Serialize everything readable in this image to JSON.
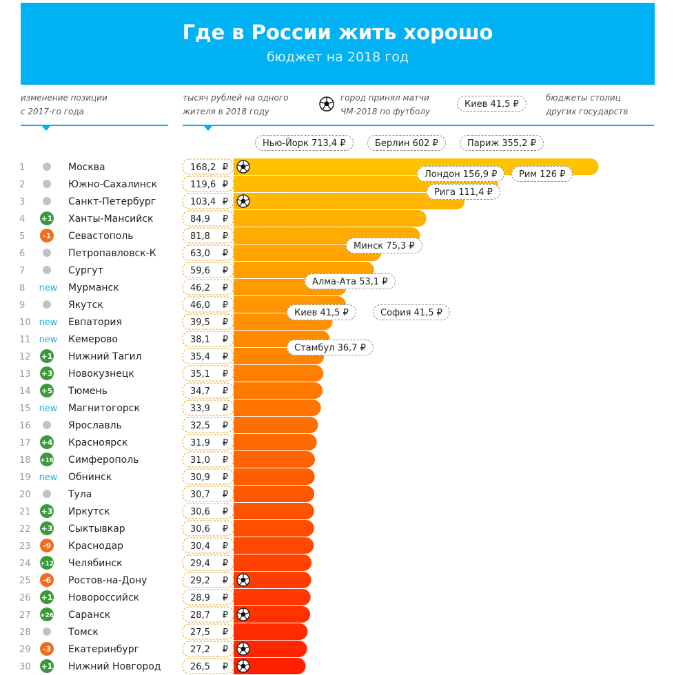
{
  "header": {
    "title": "Где в России жить хорошо",
    "subtitle": "бюджет на 2018 год"
  },
  "legend": {
    "position_change_line1": "изменение позиции",
    "position_change_line2": "с 2017-го года",
    "value_line1": "тысяч рублей на одного",
    "value_line2": "жителя в 2018 году",
    "worldcup_line1": "город принял матчи",
    "worldcup_line2": "ЧМ-2018 по футболу",
    "capital_example": "Киев 41,5 ₽",
    "capitals_line1": "бюджеты столиц",
    "capitals_line2": "других государств"
  },
  "colors": {
    "banner": "#00b1f4",
    "bar_top": "#ffc400",
    "bar_bottom": "#ff1e00",
    "badge_up": "#3a9a3a",
    "badge_down": "#f26b1d",
    "badge_same": "#c2c2c2",
    "new_text": "#1ab0e6"
  },
  "chart_data": {
    "type": "bar",
    "orientation": "horizontal",
    "title": "Где в России жить хорошо",
    "subtitle": "бюджет на 2018 год",
    "unit": "₽",
    "value_label": "тысяч рублей на одного жителя в 2018 году",
    "rank_change_label": "изменение позиции с 2017-го года",
    "categories": [
      "Москва",
      "Южно-Сахалинск",
      "Санкт-Петербург",
      "Ханты-Мансийск",
      "Севастополь",
      "Петропавловск-К",
      "Сургут",
      "Мурманск",
      "Якутск",
      "Евпатория",
      "Кемерово",
      "Нижний Тагил",
      "Новокузнецк",
      "Тюмень",
      "Магнитогорск",
      "Ярославль",
      "Красноярск",
      "Симферополь",
      "Обнинск",
      "Тула",
      "Иркутск",
      "Сыктывкар",
      "Краснодар",
      "Челябинск",
      "Ростов-на-Дону",
      "Новороссийск",
      "Саранск",
      "Томск",
      "Екатеринбург",
      "Нижний Новгород"
    ],
    "ranks": [
      "1",
      "2",
      "3",
      "4",
      "5",
      "6",
      "7",
      "8",
      "9",
      "10",
      "11",
      "12",
      "13",
      "14",
      "15",
      "16",
      "17",
      "18",
      "19",
      "20",
      "21",
      "22",
      "23",
      "24",
      "25",
      "26",
      "27",
      "28",
      "29",
      "30"
    ],
    "values": [
      168.2,
      119.6,
      103.4,
      84.9,
      81.8,
      63.0,
      59.6,
      46.2,
      46.0,
      39.5,
      38.1,
      35.4,
      35.1,
      34.7,
      33.9,
      32.5,
      31.9,
      31.0,
      30.9,
      30.7,
      30.6,
      30.6,
      30.4,
      29.4,
      29.2,
      28.9,
      28.7,
      27.5,
      27.2,
      26.5
    ],
    "value_labels": [
      "168,2",
      "119,6",
      "103,4",
      "84,9",
      "81,8",
      "63,0",
      "59,6",
      "46,2",
      "46,0",
      "39,5",
      "38,1",
      "35,4",
      "35,1",
      "34,7",
      "33,9",
      "32,5",
      "31,9",
      "31,0",
      "30,9",
      "30,7",
      "30,6",
      "30,6",
      "30,4",
      "29,4",
      "29,2",
      "28,9",
      "28,7",
      "27,5",
      "27,2",
      "26,5"
    ],
    "rank_change": [
      "",
      "",
      "",
      "+1",
      "-1",
      "",
      "",
      "new",
      "",
      "new",
      "new",
      "+1",
      "+3",
      "+5",
      "new",
      "",
      "+4",
      "+16",
      "new",
      "",
      "+3",
      "+3",
      "-9",
      "+12",
      "-6",
      "+1",
      "+26",
      "",
      "-3",
      "+1"
    ],
    "world_cup_host": [
      true,
      false,
      true,
      false,
      false,
      false,
      false,
      false,
      false,
      false,
      false,
      false,
      false,
      false,
      false,
      false,
      false,
      false,
      false,
      false,
      false,
      false,
      false,
      false,
      true,
      false,
      true,
      false,
      true,
      true
    ],
    "capitals": [
      {
        "label": "Нью-Йорк 713,4 ₽",
        "value": 713.4
      },
      {
        "label": "Берлин 602 ₽",
        "value": 602
      },
      {
        "label": "Париж 355,2 ₽",
        "value": 355.2
      },
      {
        "label": "Лондон 156,9 ₽",
        "value": 156.9
      },
      {
        "label": "Рим 126 ₽",
        "value": 126
      },
      {
        "label": "Рига  111,4 ₽",
        "value": 111.4
      },
      {
        "label": "Минск 75,3 ₽",
        "value": 75.3
      },
      {
        "label": "Алма-Ата 53,1 ₽",
        "value": 53.1
      },
      {
        "label": "Киев 41,5 ₽",
        "value": 41.5
      },
      {
        "label": "София 41,5 ₽",
        "value": 41.5
      },
      {
        "label": "Стамбул 36,7 ₽",
        "value": 36.7
      }
    ]
  }
}
